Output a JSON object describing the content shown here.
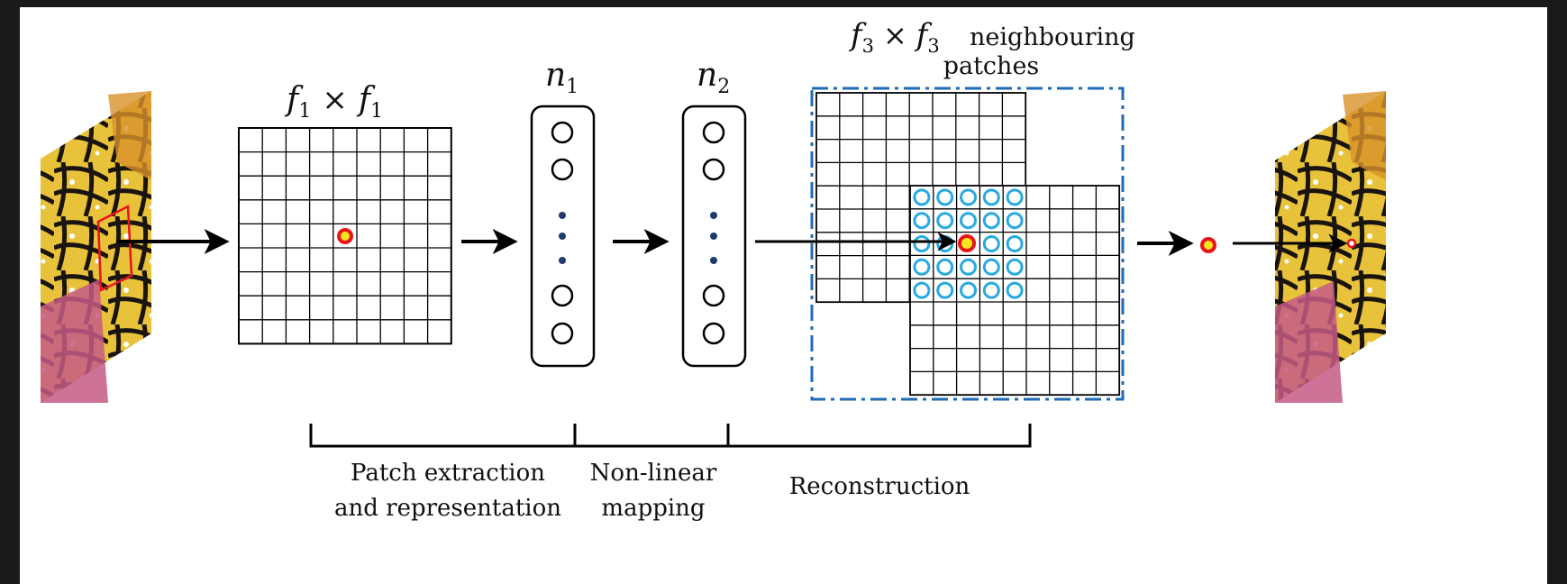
{
  "labels": {
    "f1_base": "f",
    "f1_sub": "1",
    "times": "×",
    "n1_base": "n",
    "n1_sub": "1",
    "n2_base": "n",
    "n2_sub": "2",
    "f3_base": "f",
    "f3_sub": "3",
    "neighbouring": "neighbouring",
    "patches": "patches"
  },
  "stages": [
    {
      "line1": "Patch extraction",
      "line2": "and representation"
    },
    {
      "line1": "Non-linear",
      "line2": "mapping"
    },
    {
      "line1": "Reconstruction",
      "line2": ""
    }
  ],
  "colors": {
    "background": "#1a1a1a",
    "panel": "#ffffff",
    "grid": "#000000",
    "dashed_box": "#1f6bb5",
    "cyan_circle": "#29a9e1",
    "pixel_red": "#e8141c",
    "pixel_yellow": "#f5e61a",
    "node_dot": "#1f3b6b"
  },
  "icons": {
    "low_res_image": "butterfly-wing-image",
    "high_res_image": "butterfly-wing-image"
  }
}
